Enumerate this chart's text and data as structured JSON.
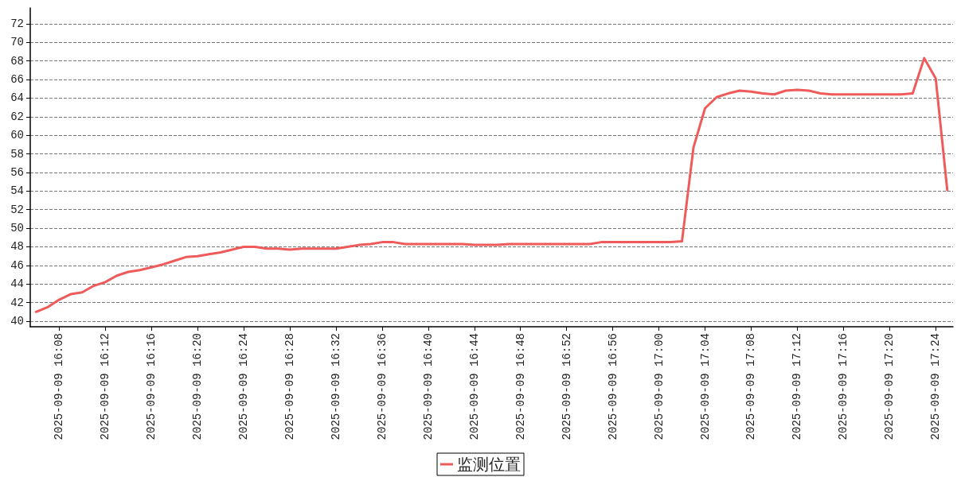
{
  "chart_data": {
    "type": "line",
    "categories": [
      null,
      null,
      "2025-09-09 16:08",
      null,
      null,
      null,
      "2025-09-09 16:12",
      null,
      null,
      null,
      "2025-09-09 16:16",
      null,
      null,
      null,
      "2025-09-09 16:20",
      null,
      null,
      null,
      "2025-09-09 16:24",
      null,
      null,
      null,
      "2025-09-09 16:28",
      null,
      null,
      null,
      "2025-09-09 16:32",
      null,
      null,
      null,
      "2025-09-09 16:36",
      null,
      null,
      null,
      "2025-09-09 16:40",
      null,
      null,
      null,
      "2025-09-09 16:44",
      null,
      null,
      null,
      "2025-09-09 16:48",
      null,
      null,
      null,
      "2025-09-09 16:52",
      null,
      null,
      null,
      "2025-09-09 16:56",
      null,
      null,
      null,
      "2025-09-09 17:00",
      null,
      null,
      null,
      "2025-09-09 17:04",
      null,
      null,
      null,
      "2025-09-09 17:08",
      null,
      null,
      null,
      "2025-09-09 17:12",
      null,
      null,
      null,
      "2025-09-09 17:16",
      null,
      null,
      null,
      "2025-09-09 17:20",
      null,
      null,
      null,
      "2025-09-09 17:24",
      null
    ],
    "series": [
      {
        "name": "监测位置",
        "color": "#ef5a5a",
        "values": [
          41.0,
          41.5,
          42.3,
          42.9,
          43.1,
          43.8,
          44.2,
          44.9,
          45.3,
          45.5,
          45.8,
          46.1,
          46.5,
          46.9,
          47.0,
          47.2,
          47.4,
          47.7,
          48.0,
          48.0,
          47.8,
          47.8,
          47.7,
          47.8,
          47.8,
          47.8,
          47.8,
          48.0,
          48.2,
          48.3,
          48.5,
          48.5,
          48.3,
          48.3,
          48.3,
          48.3,
          48.3,
          48.3,
          48.2,
          48.2,
          48.2,
          48.3,
          48.3,
          48.3,
          48.3,
          48.3,
          48.3,
          48.3,
          48.3,
          48.5,
          48.5,
          48.5,
          48.5,
          48.5,
          48.5,
          48.5,
          48.6,
          58.7,
          62.9,
          64.1,
          64.5,
          64.8,
          64.7,
          64.5,
          64.4,
          64.8,
          64.9,
          64.8,
          64.5,
          64.4,
          64.4,
          64.4,
          64.4,
          64.4,
          64.4,
          64.4,
          64.5,
          68.3,
          66.1,
          54.1
        ]
      }
    ],
    "ylim": [
      39.4,
      73.7
    ],
    "yticks": [
      40,
      42,
      44,
      46,
      48,
      50,
      52,
      54,
      56,
      58,
      60,
      62,
      64,
      66,
      68,
      70,
      72
    ],
    "grid": "y",
    "legend": "bottom",
    "marker": "none",
    "line_style": "solid"
  }
}
